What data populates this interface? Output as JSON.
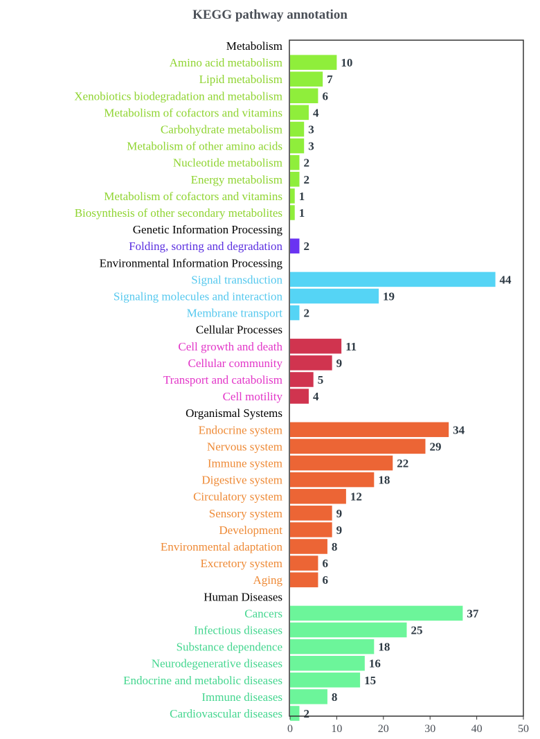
{
  "chart_data": {
    "type": "bar",
    "orientation": "horizontal",
    "title": "KEGG pathway annotation",
    "xlim": [
      0,
      50
    ],
    "xticks": [
      0,
      10,
      20,
      30,
      40,
      50
    ],
    "grid": false,
    "groups": [
      {
        "name": "Metabolism",
        "color": "#8fee3b",
        "label_color": "#8fd431",
        "categories": [
          "Amino acid metabolism",
          "Lipid metabolism",
          "Xenobiotics biodegradation and metabolism",
          "Metabolism of cofactors and vitamins",
          "Carbohydrate metabolism",
          "Metabolism of other amino acids",
          "Nucleotide metabolism",
          "Energy metabolism",
          "Metabolism of cofactors and vitamins",
          "Biosynthesis of other secondary metabolites"
        ],
        "values": [
          10,
          7,
          6,
          4,
          3,
          3,
          2,
          2,
          1,
          1
        ]
      },
      {
        "name": "Genetic Information Processing",
        "color": "#6a33f2",
        "label_color": "#5a2ee0",
        "categories": [
          "Folding, sorting and degradation"
        ],
        "values": [
          2
        ]
      },
      {
        "name": "Environmental Information Processing",
        "color": "#55d4f5",
        "label_color": "#55c8ee",
        "categories": [
          "Signal transduction",
          "Signaling molecules and interaction",
          "Membrane transport"
        ],
        "values": [
          44,
          19,
          2
        ]
      },
      {
        "name": "Cellular Processes",
        "color": "#d0344f",
        "label_color": "#e236c8",
        "categories": [
          "Cell growth and death",
          "Cellular community",
          "Transport and catabolism",
          "Cell motility"
        ],
        "values": [
          11,
          9,
          5,
          4
        ]
      },
      {
        "name": "Organismal Systems",
        "color": "#ec6535",
        "label_color": "#ee8a36",
        "categories": [
          "Endocrine system",
          "Nervous system",
          "Immune system",
          "Digestive system",
          "Circulatory system",
          "Sensory system",
          "Development",
          "Environmental adaptation",
          "Excretory system",
          "Aging"
        ],
        "values": [
          34,
          29,
          22,
          18,
          12,
          9,
          9,
          8,
          6,
          6
        ]
      },
      {
        "name": "Human Diseases",
        "color": "#6cf59a",
        "label_color": "#44d68f",
        "categories": [
          "Cancers",
          "Infectious diseases",
          "Substance dependence",
          "Neurodegenerative diseases",
          "Endocrine and metabolic diseases",
          "Immune diseases",
          "Cardiovascular diseases"
        ],
        "values": [
          37,
          25,
          18,
          16,
          15,
          8,
          2
        ]
      }
    ]
  }
}
